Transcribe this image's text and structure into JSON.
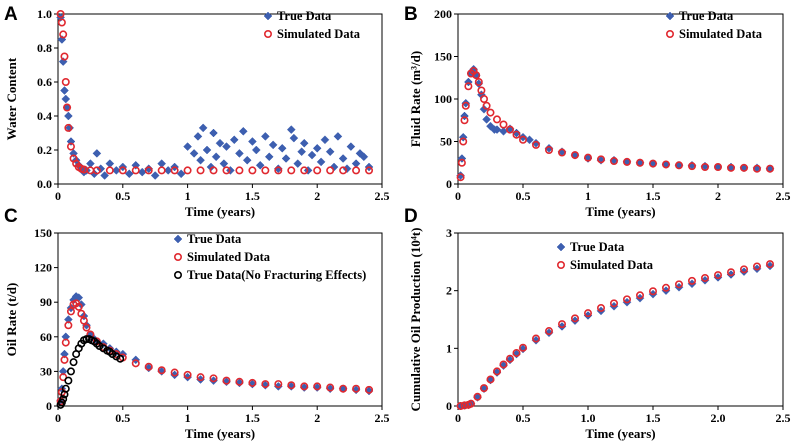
{
  "colors": {
    "true_data": "#3d5fb0",
    "simulated": "#e0282f",
    "no_frac": "#000000"
  },
  "chart_data": [
    {
      "panel": "A",
      "type": "scatter",
      "xlabel": "Time (years)",
      "ylabel": "Water Content",
      "xlim": [
        0,
        2.5
      ],
      "ylim": [
        0,
        1.0
      ],
      "xticks": [
        "0",
        "0.5",
        "1",
        "1.5",
        "2",
        "2.5"
      ],
      "yticks": [
        "0.0",
        "0.2",
        "0.4",
        "0.6",
        "0.8",
        "1.0"
      ],
      "legend": [
        "True Data",
        "Simulated Data"
      ],
      "series": [
        {
          "name": "True Data",
          "marker": "diamond",
          "x": [
            0.02,
            0.03,
            0.04,
            0.05,
            0.06,
            0.07,
            0.08,
            0.09,
            0.1,
            0.12,
            0.14,
            0.16,
            0.18,
            0.2,
            0.22,
            0.25,
            0.28,
            0.3,
            0.33,
            0.36,
            0.4,
            0.45,
            0.5,
            0.55,
            0.6,
            0.65,
            0.7,
            0.75,
            0.8,
            0.85,
            0.9,
            0.95,
            1.0,
            1.05,
            1.08,
            1.1,
            1.12,
            1.15,
            1.18,
            1.2,
            1.22,
            1.25,
            1.28,
            1.3,
            1.33,
            1.36,
            1.4,
            1.43,
            1.46,
            1.5,
            1.53,
            1.56,
            1.6,
            1.63,
            1.66,
            1.7,
            1.73,
            1.76,
            1.8,
            1.82,
            1.85,
            1.88,
            1.9,
            1.93,
            1.96,
            2.0,
            2.03,
            2.06,
            2.1,
            2.13,
            2.16,
            2.2,
            2.23,
            2.26,
            2.3,
            2.33,
            2.36,
            2.4
          ],
          "y": [
            0.98,
            0.85,
            0.72,
            0.55,
            0.5,
            0.45,
            0.4,
            0.33,
            0.25,
            0.18,
            0.14,
            0.11,
            0.09,
            0.07,
            0.08,
            0.12,
            0.06,
            0.18,
            0.09,
            0.05,
            0.12,
            0.08,
            0.1,
            0.06,
            0.11,
            0.07,
            0.09,
            0.05,
            0.12,
            0.08,
            0.1,
            0.06,
            0.22,
            0.18,
            0.28,
            0.14,
            0.33,
            0.2,
            0.1,
            0.3,
            0.16,
            0.24,
            0.12,
            0.22,
            0.08,
            0.26,
            0.18,
            0.31,
            0.14,
            0.25,
            0.2,
            0.11,
            0.28,
            0.16,
            0.23,
            0.09,
            0.21,
            0.15,
            0.32,
            0.27,
            0.12,
            0.19,
            0.24,
            0.08,
            0.17,
            0.21,
            0.13,
            0.26,
            0.19,
            0.1,
            0.28,
            0.15,
            0.09,
            0.22,
            0.12,
            0.18,
            0.16,
            0.1
          ]
        },
        {
          "name": "Simulated Data",
          "marker": "circle",
          "x": [
            0.02,
            0.03,
            0.04,
            0.05,
            0.06,
            0.07,
            0.08,
            0.1,
            0.12,
            0.14,
            0.16,
            0.18,
            0.2,
            0.25,
            0.3,
            0.4,
            0.5,
            0.6,
            0.7,
            0.8,
            0.9,
            1.0,
            1.1,
            1.2,
            1.3,
            1.4,
            1.5,
            1.6,
            1.7,
            1.8,
            1.9,
            2.0,
            2.1,
            2.2,
            2.3,
            2.4
          ],
          "y": [
            1.0,
            0.95,
            0.88,
            0.75,
            0.6,
            0.45,
            0.33,
            0.22,
            0.15,
            0.12,
            0.1,
            0.09,
            0.085,
            0.08,
            0.08,
            0.08,
            0.08,
            0.08,
            0.08,
            0.08,
            0.08,
            0.08,
            0.08,
            0.08,
            0.08,
            0.08,
            0.08,
            0.08,
            0.08,
            0.08,
            0.08,
            0.08,
            0.08,
            0.08,
            0.08,
            0.08
          ]
        }
      ]
    },
    {
      "panel": "B",
      "type": "scatter",
      "xlabel": "Time (years)",
      "ylabel": "Fluid Rate (m³/d)",
      "xlim": [
        0,
        2.5
      ],
      "ylim": [
        0,
        200
      ],
      "xticks": [
        "0",
        "0.5",
        "1",
        "1.5",
        "2",
        "2.5"
      ],
      "yticks": [
        "0",
        "50",
        "100",
        "150",
        "200"
      ],
      "legend": [
        "True Data",
        "Simulated Data"
      ],
      "series": [
        {
          "name": "True Data",
          "marker": "diamond",
          "x": [
            0.02,
            0.03,
            0.04,
            0.05,
            0.06,
            0.08,
            0.1,
            0.12,
            0.14,
            0.16,
            0.18,
            0.2,
            0.22,
            0.25,
            0.28,
            0.3,
            0.35,
            0.4,
            0.45,
            0.5,
            0.55,
            0.6,
            0.7,
            0.8,
            0.9,
            1.0,
            1.1,
            1.2,
            1.3,
            1.4,
            1.5,
            1.6,
            1.7,
            1.8,
            1.9,
            2.0,
            2.1,
            2.2,
            2.3,
            2.4
          ],
          "y": [
            10,
            30,
            55,
            80,
            95,
            120,
            130,
            135,
            128,
            118,
            105,
            88,
            76,
            68,
            64,
            64,
            62,
            65,
            60,
            55,
            52,
            48,
            42,
            38,
            34,
            30,
            28,
            28,
            26,
            25,
            24,
            23,
            22,
            22,
            21,
            20,
            20,
            19,
            19,
            18
          ]
        },
        {
          "name": "Simulated Data",
          "marker": "circle",
          "x": [
            0.02,
            0.03,
            0.04,
            0.05,
            0.06,
            0.08,
            0.1,
            0.12,
            0.14,
            0.16,
            0.18,
            0.2,
            0.22,
            0.25,
            0.3,
            0.35,
            0.4,
            0.45,
            0.5,
            0.6,
            0.7,
            0.8,
            0.9,
            1.0,
            1.1,
            1.2,
            1.3,
            1.4,
            1.5,
            1.6,
            1.7,
            1.8,
            1.9,
            2.0,
            2.1,
            2.2,
            2.3,
            2.4
          ],
          "y": [
            8,
            25,
            50,
            75,
            92,
            115,
            130,
            133,
            128,
            120,
            110,
            100,
            92,
            84,
            76,
            70,
            64,
            58,
            52,
            46,
            40,
            37,
            34,
            31,
            29,
            27,
            26,
            25,
            24,
            23,
            22,
            21,
            20,
            20,
            19,
            19,
            18,
            18
          ]
        }
      ]
    },
    {
      "panel": "C",
      "type": "scatter",
      "xlabel": "Time (years)",
      "ylabel": "Oil Rate (t/d)",
      "xlim": [
        0,
        2.5
      ],
      "ylim": [
        0,
        150
      ],
      "xticks": [
        "0",
        "0.5",
        "1",
        "1.5",
        "2",
        "2.5"
      ],
      "yticks": [
        "0",
        "30",
        "60",
        "90",
        "120",
        "150"
      ],
      "legend": [
        "True Data",
        "Simulated Data",
        "True Data(No Fracturing Effects)"
      ],
      "series": [
        {
          "name": "True Data",
          "marker": "diamond",
          "x": [
            0.02,
            0.03,
            0.04,
            0.05,
            0.06,
            0.08,
            0.1,
            0.12,
            0.14,
            0.16,
            0.18,
            0.2,
            0.22,
            0.25,
            0.28,
            0.3,
            0.35,
            0.4,
            0.45,
            0.5,
            0.6,
            0.7,
            0.8,
            0.9,
            1.0,
            1.1,
            1.2,
            1.3,
            1.4,
            1.5,
            1.6,
            1.7,
            1.8,
            1.9,
            2.0,
            2.1,
            2.2,
            2.3,
            2.4
          ],
          "y": [
            5,
            15,
            30,
            45,
            60,
            75,
            85,
            92,
            95,
            94,
            88,
            78,
            70,
            62,
            58,
            56,
            54,
            50,
            47,
            45,
            40,
            33,
            30,
            27,
            25,
            23,
            22,
            21,
            20,
            19,
            18,
            17,
            17,
            16,
            16,
            15,
            15,
            14,
            13
          ]
        },
        {
          "name": "Simulated Data",
          "marker": "circle",
          "x": [
            0.02,
            0.03,
            0.04,
            0.05,
            0.06,
            0.08,
            0.1,
            0.12,
            0.14,
            0.16,
            0.18,
            0.2,
            0.22,
            0.25,
            0.3,
            0.35,
            0.4,
            0.45,
            0.5,
            0.6,
            0.7,
            0.8,
            0.9,
            1.0,
            1.1,
            1.2,
            1.3,
            1.4,
            1.5,
            1.6,
            1.7,
            1.8,
            1.9,
            2.0,
            2.1,
            2.2,
            2.3,
            2.4
          ],
          "y": [
            4,
            12,
            25,
            40,
            55,
            70,
            82,
            88,
            89,
            86,
            80,
            74,
            68,
            62,
            56,
            51,
            48,
            45,
            42,
            37,
            34,
            31,
            29,
            27,
            25,
            24,
            22,
            21,
            20,
            19,
            19,
            18,
            17,
            17,
            16,
            15,
            15,
            14
          ]
        },
        {
          "name": "True Data(No Fracturing Effects)",
          "marker": "circle",
          "x": [
            0.02,
            0.03,
            0.04,
            0.05,
            0.06,
            0.08,
            0.1,
            0.12,
            0.14,
            0.16,
            0.18,
            0.2,
            0.22,
            0.24,
            0.26,
            0.28,
            0.3,
            0.32,
            0.35,
            0.38,
            0.4,
            0.42,
            0.45,
            0.48
          ],
          "y": [
            1,
            3,
            6,
            10,
            15,
            22,
            30,
            38,
            45,
            50,
            54,
            57,
            58,
            58,
            57,
            56,
            54,
            52,
            50,
            48,
            47,
            45,
            43,
            41
          ]
        }
      ]
    },
    {
      "panel": "D",
      "type": "scatter",
      "xlabel": "Time (years)",
      "ylabel": "Cumulative Oil Production (10⁴t)",
      "xlim": [
        0,
        2.5
      ],
      "ylim": [
        0,
        3
      ],
      "xticks": [
        "0",
        "0.5",
        "1.0",
        "1.5",
        "2.0",
        "2.5"
      ],
      "yticks": [
        "0",
        "1",
        "2",
        "3"
      ],
      "legend": [
        "True Data",
        "Simulated Data"
      ],
      "series": [
        {
          "name": "True Data",
          "marker": "diamond",
          "x": [
            0.02,
            0.05,
            0.08,
            0.1,
            0.15,
            0.2,
            0.25,
            0.3,
            0.35,
            0.4,
            0.45,
            0.5,
            0.6,
            0.7,
            0.8,
            0.9,
            1.0,
            1.1,
            1.2,
            1.3,
            1.4,
            1.5,
            1.6,
            1.7,
            1.8,
            1.9,
            2.0,
            2.1,
            2.2,
            2.3,
            2.4
          ],
          "y": [
            0.0,
            0.01,
            0.02,
            0.04,
            0.15,
            0.3,
            0.45,
            0.58,
            0.7,
            0.8,
            0.9,
            0.99,
            1.14,
            1.27,
            1.38,
            1.48,
            1.57,
            1.65,
            1.73,
            1.8,
            1.87,
            1.94,
            2.0,
            2.06,
            2.12,
            2.18,
            2.23,
            2.28,
            2.33,
            2.38,
            2.43
          ]
        },
        {
          "name": "Simulated Data",
          "marker": "circle",
          "x": [
            0.02,
            0.05,
            0.08,
            0.1,
            0.15,
            0.2,
            0.25,
            0.3,
            0.35,
            0.4,
            0.45,
            0.5,
            0.6,
            0.7,
            0.8,
            0.9,
            1.0,
            1.1,
            1.2,
            1.3,
            1.4,
            1.5,
            1.6,
            1.7,
            1.8,
            1.9,
            2.0,
            2.1,
            2.2,
            2.3,
            2.4
          ],
          "y": [
            0.0,
            0.01,
            0.02,
            0.04,
            0.16,
            0.31,
            0.46,
            0.6,
            0.72,
            0.82,
            0.92,
            1.01,
            1.17,
            1.3,
            1.42,
            1.52,
            1.61,
            1.7,
            1.78,
            1.85,
            1.92,
            1.99,
            2.05,
            2.11,
            2.17,
            2.22,
            2.27,
            2.32,
            2.37,
            2.42,
            2.46
          ]
        }
      ]
    }
  ]
}
